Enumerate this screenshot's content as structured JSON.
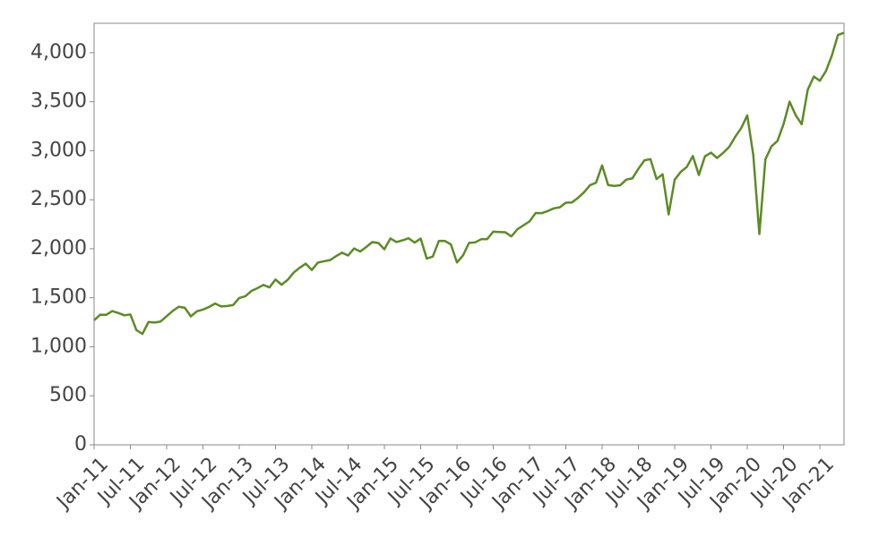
{
  "chart_data": {
    "type": "line",
    "x": [
      "2011-01",
      "2011-02",
      "2011-03",
      "2011-04",
      "2011-05",
      "2011-06",
      "2011-07",
      "2011-08",
      "2011-09",
      "2011-10",
      "2011-11",
      "2011-12",
      "2012-01",
      "2012-02",
      "2012-03",
      "2012-04",
      "2012-05",
      "2012-06",
      "2012-07",
      "2012-08",
      "2012-09",
      "2012-10",
      "2012-11",
      "2012-12",
      "2013-01",
      "2013-02",
      "2013-03",
      "2013-04",
      "2013-05",
      "2013-06",
      "2013-07",
      "2013-08",
      "2013-09",
      "2013-10",
      "2013-11",
      "2013-12",
      "2014-01",
      "2014-02",
      "2014-03",
      "2014-04",
      "2014-05",
      "2014-06",
      "2014-07",
      "2014-08",
      "2014-09",
      "2014-10",
      "2014-11",
      "2014-12",
      "2015-01",
      "2015-02",
      "2015-03",
      "2015-04",
      "2015-05",
      "2015-06",
      "2015-07",
      "2015-08",
      "2015-09",
      "2015-10",
      "2015-11",
      "2015-12",
      "2016-01",
      "2016-02",
      "2016-03",
      "2016-04",
      "2016-05",
      "2016-06",
      "2016-07",
      "2016-08",
      "2016-09",
      "2016-10",
      "2016-11",
      "2016-12",
      "2017-01",
      "2017-02",
      "2017-03",
      "2017-04",
      "2017-05",
      "2017-06",
      "2017-07",
      "2017-08",
      "2017-09",
      "2017-10",
      "2017-11",
      "2017-12",
      "2018-01",
      "2018-02",
      "2018-03",
      "2018-04",
      "2018-05",
      "2018-06",
      "2018-07",
      "2018-08",
      "2018-09",
      "2018-10",
      "2018-11",
      "2018-12",
      "2019-01",
      "2019-02",
      "2019-03",
      "2019-04",
      "2019-05",
      "2019-06",
      "2019-07",
      "2019-08",
      "2019-09",
      "2019-10",
      "2019-11",
      "2019-12",
      "2020-01",
      "2020-02",
      "2020-03",
      "2020-04",
      "2020-05",
      "2020-06",
      "2020-07",
      "2020-08",
      "2020-09",
      "2020-10",
      "2020-11",
      "2020-12",
      "2021-01",
      "2021-02",
      "2021-03",
      "2021-04",
      "2021-05"
    ],
    "series": [
      {
        "color": "#5b8c24",
        "values": [
          1270,
          1327,
          1326,
          1364,
          1345,
          1321,
          1330,
          1170,
          1131,
          1253,
          1247,
          1258,
          1312,
          1366,
          1408,
          1398,
          1310,
          1362,
          1379,
          1406,
          1441,
          1412,
          1416,
          1426,
          1498,
          1515,
          1569,
          1598,
          1631,
          1606,
          1686,
          1633,
          1682,
          1757,
          1806,
          1848,
          1783,
          1859,
          1872,
          1884,
          1924,
          1960,
          1931,
          2003,
          1972,
          2018,
          2068,
          2059,
          1995,
          2105,
          2068,
          2086,
          2107,
          2063,
          2104,
          1900,
          1920,
          2079,
          2080,
          2044,
          1860,
          1932,
          2060,
          2065,
          2097,
          2099,
          2174,
          2171,
          2168,
          2126,
          2199,
          2239,
          2279,
          2364,
          2363,
          2384,
          2412,
          2423,
          2470,
          2472,
          2519,
          2575,
          2648,
          2674,
          2850,
          2650,
          2641,
          2648,
          2705,
          2718,
          2816,
          2902,
          2914,
          2711,
          2760,
          2350,
          2704,
          2784,
          2834,
          2946,
          2752,
          2942,
          2980,
          2926,
          2977,
          3038,
          3141,
          3231,
          3360,
          2954,
          2150,
          2912,
          3044,
          3100,
          3271,
          3500,
          3363,
          3270,
          3622,
          3756,
          3714,
          3811,
          3973,
          4181,
          4204
        ]
      }
    ],
    "xlim": [
      "2011-01",
      "2021-05"
    ],
    "xticks": [
      {
        "value": "2011-01",
        "label": "Jan-11"
      },
      {
        "value": "2011-07",
        "label": "Jul-11"
      },
      {
        "value": "2012-01",
        "label": "Jan-12"
      },
      {
        "value": "2012-07",
        "label": "Jul-12"
      },
      {
        "value": "2013-01",
        "label": "Jan-13"
      },
      {
        "value": "2013-07",
        "label": "Jul-13"
      },
      {
        "value": "2014-01",
        "label": "Jan-14"
      },
      {
        "value": "2014-07",
        "label": "Jul-14"
      },
      {
        "value": "2015-01",
        "label": "Jan-15"
      },
      {
        "value": "2015-07",
        "label": "Jul-15"
      },
      {
        "value": "2016-01",
        "label": "Jan-16"
      },
      {
        "value": "2016-07",
        "label": "Jul-16"
      },
      {
        "value": "2017-01",
        "label": "Jan-17"
      },
      {
        "value": "2017-07",
        "label": "Jul-17"
      },
      {
        "value": "2018-01",
        "label": "Jan-18"
      },
      {
        "value": "2018-07",
        "label": "Jul-18"
      },
      {
        "value": "2019-01",
        "label": "Jan-19"
      },
      {
        "value": "2019-07",
        "label": "Jul-19"
      },
      {
        "value": "2020-01",
        "label": "Jan-20"
      },
      {
        "value": "2020-07",
        "label": "Jul-20"
      },
      {
        "value": "2021-01",
        "label": "Jan-21"
      }
    ],
    "ylim": [
      0,
      4300
    ],
    "yticks": [
      0,
      500,
      {
        "value": 1000,
        "label": "1,000"
      },
      {
        "value": 1500,
        "label": "1,500"
      },
      {
        "value": 2000,
        "label": "2,000"
      },
      {
        "value": 2500,
        "label": "2,500"
      },
      {
        "value": 3000,
        "label": "3,000"
      },
      {
        "value": 3500,
        "label": "3,500"
      },
      {
        "value": 4000,
        "label": "4,000"
      }
    ],
    "grid": false
  }
}
